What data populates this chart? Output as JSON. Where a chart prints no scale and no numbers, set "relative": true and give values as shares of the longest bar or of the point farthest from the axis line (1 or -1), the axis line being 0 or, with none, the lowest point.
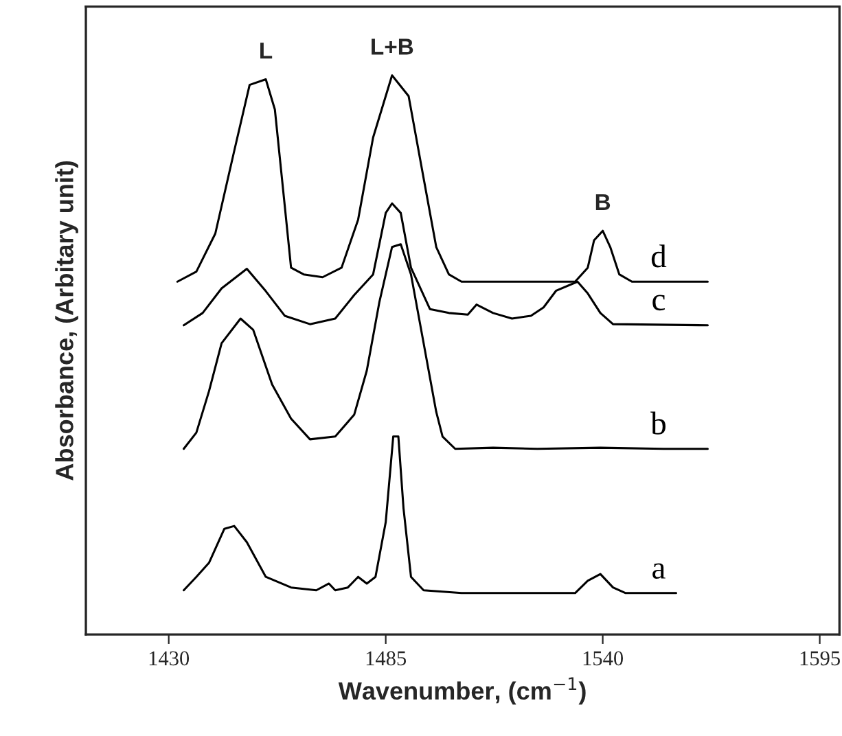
{
  "chart_data": {
    "type": "line",
    "relative": true,
    "xlabel": "Wavenumber, (cm$^{−1}$)",
    "ylabel": "Absorbance, (Arbitary unit)",
    "xlim": [
      1409,
      1600
    ],
    "xticks": [
      1430,
      1485,
      1540,
      1595
    ],
    "tick_labels": "x",
    "grid": false,
    "legend": false,
    "marker": "none",
    "line_style": "solid",
    "annotations": [
      {
        "text": "L",
        "x": 1454.6,
        "y": 0.993
      },
      {
        "text": "L+B",
        "x": 1486.6,
        "y": 1.0
      },
      {
        "text": "B",
        "x": 1540,
        "y": 0.722
      }
    ],
    "series": [
      {
        "name": "d",
        "color": "#000000",
        "x": [
          1432.2,
          1437,
          1441.8,
          1446.6,
          1450.5,
          1454.6,
          1456.9,
          1459.4,
          1461,
          1464.2,
          1469,
          1473.8,
          1478,
          1481.8,
          1486.6,
          1490.8,
          1494.6,
          1497.8,
          1501,
          1504.2,
          1533,
          1536.2,
          1537.8,
          1540,
          1541.9,
          1544.2,
          1547.4,
          1566.6
        ],
        "values": [
          0.631,
          0.649,
          0.717,
          0.865,
          0.983,
          0.993,
          0.939,
          0.767,
          0.656,
          0.644,
          0.639,
          0.656,
          0.742,
          0.889,
          1.0,
          0.963,
          0.816,
          0.693,
          0.644,
          0.631,
          0.631,
          0.656,
          0.705,
          0.722,
          0.693,
          0.644,
          0.631,
          0.631
        ]
      },
      {
        "name": "c",
        "color": "#000000",
        "x": [
          1433.8,
          1438.6,
          1443.4,
          1449.8,
          1454.6,
          1459.4,
          1465.8,
          1472.2,
          1477,
          1481.8,
          1485,
          1486.6,
          1488.8,
          1491.4,
          1496.2,
          1501,
          1505.8,
          1508,
          1512.2,
          1517,
          1521.8,
          1525,
          1528.2,
          1533.6,
          1536.2,
          1539.4,
          1542.6,
          1566.6
        ],
        "values": [
          0.553,
          0.575,
          0.619,
          0.654,
          0.614,
          0.57,
          0.555,
          0.565,
          0.607,
          0.644,
          0.754,
          0.771,
          0.754,
          0.656,
          0.582,
          0.575,
          0.572,
          0.59,
          0.575,
          0.565,
          0.57,
          0.585,
          0.615,
          0.631,
          0.61,
          0.575,
          0.555,
          0.553
        ]
      },
      {
        "name": "b",
        "color": "#000000",
        "x": [
          1433.8,
          1437,
          1440.2,
          1443.4,
          1448.2,
          1451.4,
          1456.2,
          1461,
          1465.8,
          1472.2,
          1477,
          1480.2,
          1483.4,
          1486.6,
          1488.8,
          1491.4,
          1494.6,
          1497.8,
          1499.4,
          1502.6,
          1512.2,
          1523.4,
          1539.4,
          1555.4,
          1566.6
        ],
        "values": [
          0.332,
          0.361,
          0.435,
          0.521,
          0.565,
          0.545,
          0.447,
          0.386,
          0.349,
          0.354,
          0.393,
          0.472,
          0.595,
          0.693,
          0.698,
          0.644,
          0.521,
          0.398,
          0.354,
          0.332,
          0.334,
          0.332,
          0.334,
          0.332,
          0.332
        ]
      },
      {
        "name": "a",
        "color": "#000000",
        "x": [
          1433.8,
          1437,
          1440.2,
          1444.1,
          1446.6,
          1449.8,
          1454.6,
          1461,
          1467.4,
          1470.6,
          1472.2,
          1475.4,
          1478,
          1480.2,
          1482.4,
          1485,
          1486.9,
          1488.2,
          1489.5,
          1491.4,
          1494.6,
          1504.2,
          1533,
          1536.2,
          1539.4,
          1542.6,
          1545.8,
          1558.6
        ],
        "values": [
          0.079,
          0.103,
          0.128,
          0.189,
          0.194,
          0.165,
          0.103,
          0.084,
          0.079,
          0.091,
          0.079,
          0.084,
          0.103,
          0.091,
          0.103,
          0.201,
          0.354,
          0.354,
          0.226,
          0.103,
          0.079,
          0.074,
          0.074,
          0.096,
          0.108,
          0.084,
          0.074,
          0.074
        ]
      }
    ]
  }
}
